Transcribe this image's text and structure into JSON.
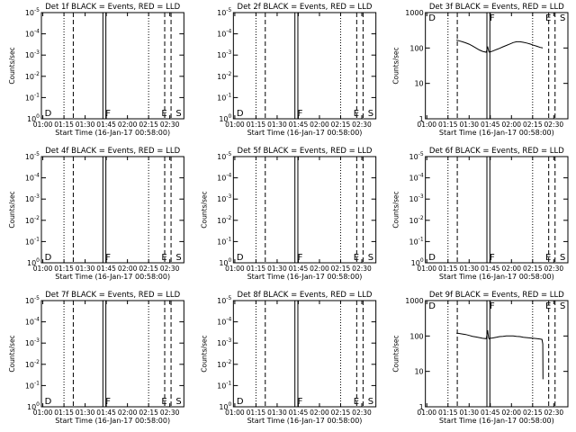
{
  "panels": [
    {
      "title": "Det 1f BLACK = Events, RED = LLD",
      "yscale": "exp",
      "ylim": [
        1,
        10000
      ],
      "yticks": [
        "10^0",
        "10^-1",
        "10^-2",
        "10^-3",
        "10^-4",
        "10^-5"
      ],
      "ylabel": "Counts/sec",
      "markers": [
        "D",
        "F",
        "E",
        "S"
      ],
      "series": []
    },
    {
      "title": "Det 2f BLACK = Events, RED = LLD",
      "yscale": "exp",
      "ylim": [
        1,
        10000
      ],
      "yticks": [
        "10^0",
        "10^-1",
        "10^-2",
        "10^-3",
        "10^-4",
        "10^-5"
      ],
      "ylabel": "",
      "markers": [
        "D",
        "F",
        "E",
        "S"
      ],
      "series": []
    },
    {
      "title": "Det 3f BLACK = Events, RED = LLD",
      "yscale": "log",
      "ylim": [
        1,
        1000
      ],
      "yticks": [
        "1",
        "10",
        "100",
        "1000"
      ],
      "ylabel": "Counts/sec",
      "markers": [
        "D",
        "F",
        "E",
        "S"
      ],
      "series": [
        {
          "name": "Events",
          "color": "#000000",
          "x": [
            1.35,
            1.38,
            1.42,
            1.46,
            1.5,
            1.54,
            1.58,
            1.62,
            1.66,
            1.7,
            1.705,
            1.712,
            1.718,
            1.725,
            1.73,
            1.735,
            1.74,
            1.745,
            1.75,
            1.78,
            1.82,
            1.86,
            1.9,
            1.94,
            1.98,
            2.02,
            2.06,
            2.1,
            2.14,
            2.18,
            2.22,
            2.26,
            2.3,
            2.34,
            2.37
          ],
          "y": [
            168,
            160,
            150,
            140,
            128,
            114,
            100,
            88,
            80,
            76,
            80,
            95,
            110,
            95,
            82,
            78,
            76,
            76,
            78,
            82,
            90,
            98,
            108,
            118,
            130,
            142,
            150,
            150,
            145,
            138,
            130,
            120,
            112,
            104,
            100
          ]
        }
      ]
    },
    {
      "title": "Det 4f BLACK = Events, RED = LLD",
      "yscale": "exp",
      "ylim": [
        1,
        10000
      ],
      "yticks": [
        "10^0",
        "10^-1",
        "10^-2",
        "10^-3",
        "10^-4",
        "10^-5"
      ],
      "ylabel": "Counts/sec",
      "markers": [
        "D",
        "F",
        "E",
        "S"
      ],
      "series": []
    },
    {
      "title": "Det 5f BLACK = Events, RED = LLD",
      "yscale": "exp",
      "ylim": [
        1,
        10000
      ],
      "yticks": [
        "10^0",
        "10^-1",
        "10^-2",
        "10^-3",
        "10^-4",
        "10^-5"
      ],
      "ylabel": "Counts/sec",
      "markers": [
        "D",
        "F",
        "E",
        "S"
      ],
      "series": []
    },
    {
      "title": "Det 6f BLACK = Events, RED = LLD",
      "yscale": "exp",
      "ylim": [
        1,
        10000
      ],
      "yticks": [
        "10^0",
        "10^-1",
        "10^-2",
        "10^-3",
        "10^-4",
        "10^-5"
      ],
      "ylabel": "Counts/sec",
      "markers": [
        "D",
        "F",
        "E",
        "S"
      ],
      "series": []
    },
    {
      "title": "Det 7f BLACK = Events, RED = LLD",
      "yscale": "exp",
      "ylim": [
        1,
        10000
      ],
      "yticks": [
        "10^0",
        "10^-1",
        "10^-2",
        "10^-3",
        "10^-4",
        "10^-5"
      ],
      "ylabel": "Counts/sec",
      "markers": [
        "D",
        "F",
        "E",
        "S"
      ],
      "series": []
    },
    {
      "title": "Det 8f BLACK = Events, RED = LLD",
      "yscale": "exp",
      "ylim": [
        1,
        10000
      ],
      "yticks": [
        "10^0",
        "10^-1",
        "10^-2",
        "10^-3",
        "10^-4",
        "10^-5"
      ],
      "ylabel": "Counts/sec",
      "markers": [
        "D",
        "F",
        "E",
        "S"
      ],
      "series": []
    },
    {
      "title": "Det 9f BLACK = Events, RED = LLD",
      "yscale": "log",
      "ylim": [
        1,
        1000
      ],
      "yticks": [
        "1",
        "10",
        "100",
        "1000"
      ],
      "ylabel": "Counts/sec",
      "markers": [
        "D",
        "F",
        "E",
        "S"
      ],
      "series": [
        {
          "name": "Events",
          "color": "#000000",
          "x": [
            1.35,
            1.38,
            1.42,
            1.46,
            1.5,
            1.54,
            1.58,
            1.62,
            1.66,
            1.7,
            1.705,
            1.712,
            1.718,
            1.725,
            1.73,
            1.735,
            1.74,
            1.745,
            1.75,
            1.78,
            1.82,
            1.86,
            1.9,
            1.94,
            1.98,
            2.02,
            2.06,
            2.1,
            2.14,
            2.18,
            2.22,
            2.26,
            2.3,
            2.34,
            2.36,
            2.37,
            2.372
          ],
          "y": [
            120,
            118,
            114,
            110,
            104,
            98,
            94,
            90,
            86,
            84,
            90,
            115,
            145,
            110,
            88,
            84,
            82,
            84,
            86,
            88,
            92,
            96,
            98,
            100,
            100,
            100,
            98,
            96,
            92,
            90,
            88,
            86,
            84,
            82,
            80,
            60,
            6
          ]
        }
      ]
    }
  ],
  "chart_data": [
    {
      "type": "line",
      "title": "Det 1f BLACK = Events, RED = LLD",
      "xlabel": "Start Time (16-Jan-17 00:58:00)",
      "ylabel": "Counts/sec",
      "xlim": [
        "01:00",
        "02:40"
      ],
      "ylim": [
        1,
        10000
      ],
      "series": []
    },
    {
      "type": "line",
      "title": "Det 2f BLACK = Events, RED = LLD",
      "xlabel": "Start Time (16-Jan-17 00:58:00)",
      "ylabel": "",
      "xlim": [
        "01:00",
        "02:40"
      ],
      "ylim": [
        1,
        10000
      ],
      "series": []
    },
    {
      "type": "line",
      "title": "Det 3f BLACK = Events, RED = LLD",
      "xlabel": "Start Time (16-Jan-17 00:58:00)",
      "ylabel": "Counts/sec",
      "xlim": [
        "01:00",
        "02:40"
      ],
      "ylim": [
        1,
        1000
      ],
      "yscale": "log",
      "series": [
        {
          "name": "Events",
          "color": "#000000"
        }
      ]
    },
    {
      "type": "line",
      "title": "Det 4f BLACK = Events, RED = LLD",
      "xlabel": "Start Time (16-Jan-17 00:58:00)",
      "ylabel": "Counts/sec",
      "xlim": [
        "01:00",
        "02:40"
      ],
      "ylim": [
        1,
        10000
      ],
      "series": []
    },
    {
      "type": "line",
      "title": "Det 5f BLACK = Events, RED = LLD",
      "xlabel": "Start Time (16-Jan-17 00:58:00)",
      "ylabel": "Counts/sec",
      "xlim": [
        "01:00",
        "02:40"
      ],
      "ylim": [
        1,
        10000
      ],
      "series": []
    },
    {
      "type": "line",
      "title": "Det 6f BLACK = Events, RED = LLD",
      "xlabel": "Start Time (16-Jan-17 00:58:00)",
      "ylabel": "Counts/sec",
      "xlim": [
        "01:00",
        "02:40"
      ],
      "ylim": [
        1,
        10000
      ],
      "series": []
    },
    {
      "type": "line",
      "title": "Det 7f BLACK = Events, RED = LLD",
      "xlabel": "Start Time (16-Jan-17 00:58:00)",
      "ylabel": "Counts/sec",
      "xlim": [
        "01:00",
        "02:40"
      ],
      "ylim": [
        1,
        10000
      ],
      "series": []
    },
    {
      "type": "line",
      "title": "Det 8f BLACK = Events, RED = LLD",
      "xlabel": "Start Time (16-Jan-17 00:58:00)",
      "ylabel": "Counts/sec",
      "xlim": [
        "01:00",
        "02:40"
      ],
      "ylim": [
        1,
        10000
      ],
      "series": []
    },
    {
      "type": "line",
      "title": "Det 9f BLACK = Events, RED = LLD",
      "xlabel": "Start Time (16-Jan-17 00:58:00)",
      "ylabel": "Counts/sec",
      "xlim": [
        "01:00",
        "02:40"
      ],
      "ylim": [
        1,
        1000
      ],
      "yscale": "log",
      "series": [
        {
          "name": "Events",
          "color": "#000000"
        }
      ]
    }
  ],
  "shared": {
    "xlabel": "Start Time (16-Jan-17 00:58:00)",
    "xticks": [
      "01:00",
      "01:15",
      "01:30",
      "01:45",
      "02:00",
      "02:15",
      "02:30"
    ],
    "vlines": [
      {
        "t": 1.25,
        "style": "dotted"
      },
      {
        "t": 1.36,
        "style": "dashed"
      },
      {
        "t": 1.71,
        "style": "solid"
      },
      {
        "t": 1.745,
        "style": "solid"
      },
      {
        "t": 2.25,
        "style": "dotted"
      },
      {
        "t": 2.44,
        "style": "dashed"
      },
      {
        "t": 2.515,
        "style": "dashed"
      }
    ],
    "marker_times": [
      1.0,
      1.72,
      2.38,
      2.55
    ]
  }
}
